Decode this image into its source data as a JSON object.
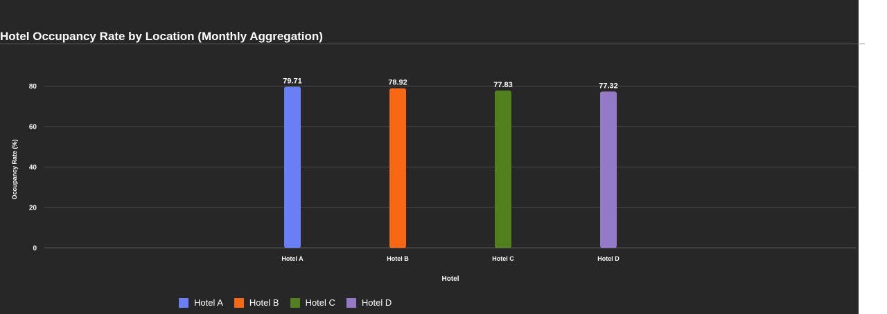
{
  "colors": {
    "background": "#272727",
    "grid": "#4a4a4a",
    "text": "#ffffff"
  },
  "chart_data": {
    "type": "bar",
    "title": "Hotel Occupancy Rate by Location (Monthly Aggregation)",
    "xlabel": "Hotel",
    "ylabel": "Occupancy Rate (%)",
    "categories": [
      "Hotel A",
      "Hotel B",
      "Hotel C",
      "Hotel D"
    ],
    "values": [
      79.71,
      78.92,
      77.83,
      77.32
    ],
    "data_labels": [
      "79.71",
      "78.92",
      "77.83",
      "77.32"
    ],
    "colors": [
      "#6a7ff5",
      "#f86711",
      "#53801f",
      "#9479c7"
    ],
    "ylim": [
      0,
      80
    ],
    "yticks": [
      0,
      20,
      40,
      60,
      80
    ],
    "grid": true,
    "legend": {
      "placement": "bottom-left",
      "entries": [
        "Hotel A",
        "Hotel B",
        "Hotel C",
        "Hotel D"
      ]
    }
  }
}
